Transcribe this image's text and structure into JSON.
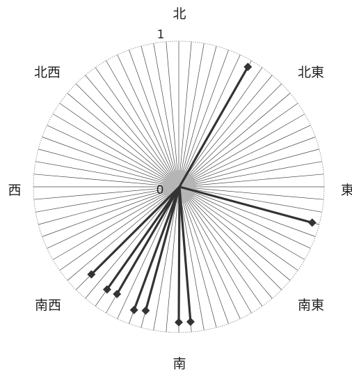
{
  "chart_data": {
    "type": "radar",
    "radial_range": [
      0,
      1
    ],
    "radial_ticks": [
      "0",
      "1"
    ],
    "direction_labels": [
      "北",
      "北東",
      "東",
      "南東",
      "南",
      "南西",
      "西",
      "北西"
    ],
    "spoke_count": 72,
    "series": [
      {
        "color": "#333333",
        "points": [
          {
            "bearing_deg": 30,
            "value": 0.95
          },
          {
            "bearing_deg": 105,
            "value": 0.95
          },
          {
            "bearing_deg": 175,
            "value": 0.93
          },
          {
            "bearing_deg": 180,
            "value": 0.93
          },
          {
            "bearing_deg": 195,
            "value": 0.88
          },
          {
            "bearing_deg": 200,
            "value": 0.9
          },
          {
            "bearing_deg": 210,
            "value": 0.85
          },
          {
            "bearing_deg": 215,
            "value": 0.86
          },
          {
            "bearing_deg": 225,
            "value": 0.85
          }
        ]
      }
    ],
    "colors": {
      "spokes": "#444444",
      "rim": "#888888",
      "center_fill": "#b5b5b5",
      "series_line": "#333333"
    },
    "grid": true,
    "legend": "none"
  }
}
